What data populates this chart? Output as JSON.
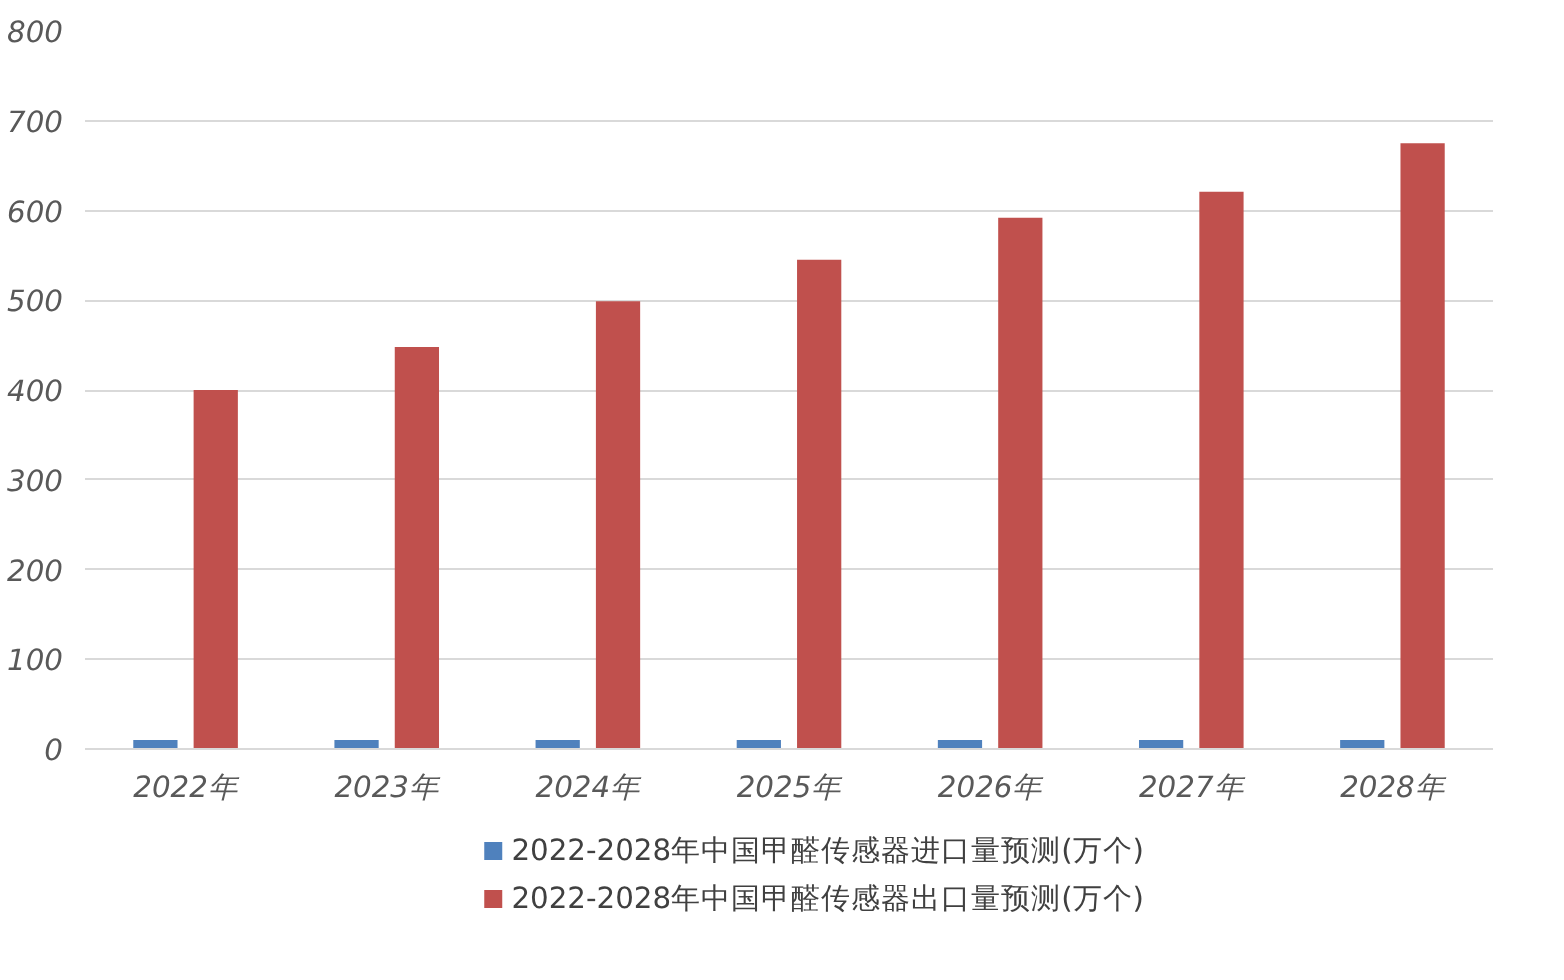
{
  "chart_data": {
    "type": "bar",
    "categories": [
      "2022年",
      "2023年",
      "2024年",
      "2025年",
      "2026年",
      "2027年",
      "2028年"
    ],
    "series": [
      {
        "name": "2022-2028年中国甲醛传感器进口量预测(万个)",
        "color": "#4f81bd",
        "values": [
          10,
          10,
          10,
          10,
          10,
          10,
          10
        ]
      },
      {
        "name": "2022-2028年中国甲醛传感器出口量预测(万个)",
        "color": "#c0504d",
        "values": [
          400,
          448,
          499,
          545,
          592,
          621,
          675
        ]
      }
    ],
    "ylim": [
      0,
      800
    ],
    "yticks": [
      0,
      100,
      200,
      300,
      400,
      500,
      600,
      700,
      800
    ],
    "grid": "y",
    "legend": "bottom"
  }
}
